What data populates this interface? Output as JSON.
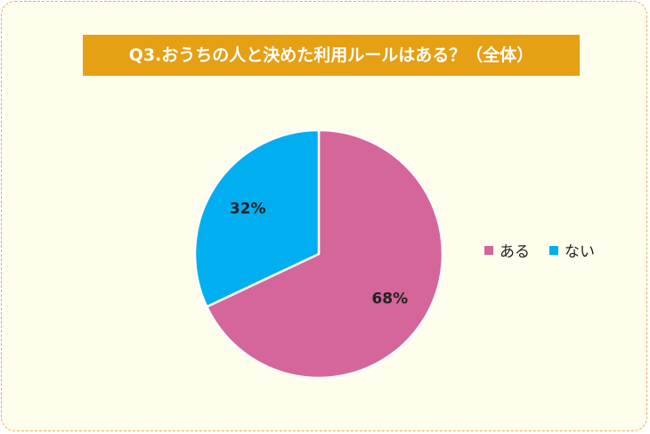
{
  "chart_data": {
    "type": "pie",
    "title": "Q3.おうちの人と決めた利用ルールはある？（全体）",
    "categories": [
      "ある",
      "ない"
    ],
    "values": [
      68,
      32
    ],
    "labels": [
      "68%",
      "32%"
    ],
    "colors": [
      "#d5669a",
      "#01aef0"
    ],
    "legend_position": "right"
  },
  "colors": {
    "background": "#fffeec",
    "title_bg": "#e6a013",
    "border": "#f0a868"
  }
}
